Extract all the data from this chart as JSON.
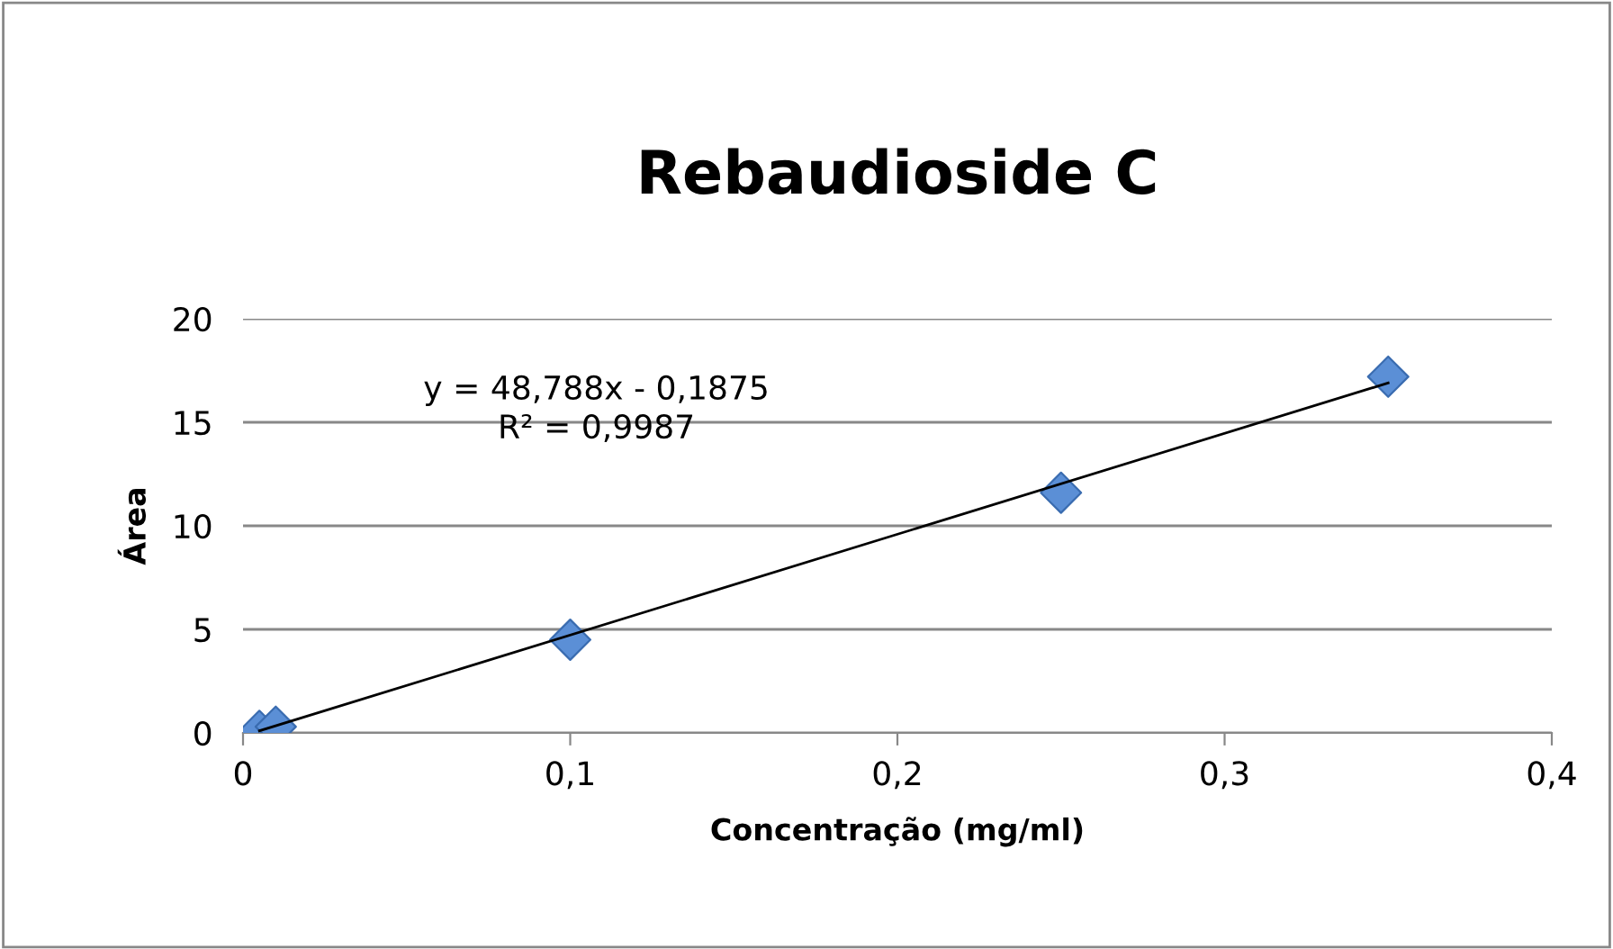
{
  "chart_data": {
    "type": "scatter",
    "title": "Rebaudioside C",
    "xlabel": "Concentração (mg/ml)",
    "ylabel": "Área",
    "annotations": [
      "y = 48,788x - 0,1875\nR² = 0,9987"
    ],
    "series": [
      {
        "color": "#5b8fd6",
        "marker": "diamond",
        "x": [
          0.005,
          0.01,
          0.1,
          0.25,
          0.35
        ],
        "values": [
          0.1,
          0.3,
          4.5,
          11.6,
          17.2
        ]
      },
      {
        "type": "line",
        "color": "#000000",
        "marker": "none",
        "line_style": "solid",
        "x": [
          0.005,
          0.35
        ],
        "values": [
          0.1,
          16.9
        ]
      }
    ],
    "xlim": [
      0,
      0.4
    ],
    "xticks": [
      0,
      {
        "value": 0.1,
        "label": "0,1"
      },
      {
        "value": 0.2,
        "label": "0,2"
      },
      {
        "value": 0.3,
        "label": "0,3"
      },
      {
        "value": 0.4,
        "label": "0,4"
      }
    ],
    "ylim": [
      0,
      20
    ],
    "yticks": [
      0,
      5,
      10,
      15,
      20
    ],
    "grid": "y",
    "legend": false
  }
}
